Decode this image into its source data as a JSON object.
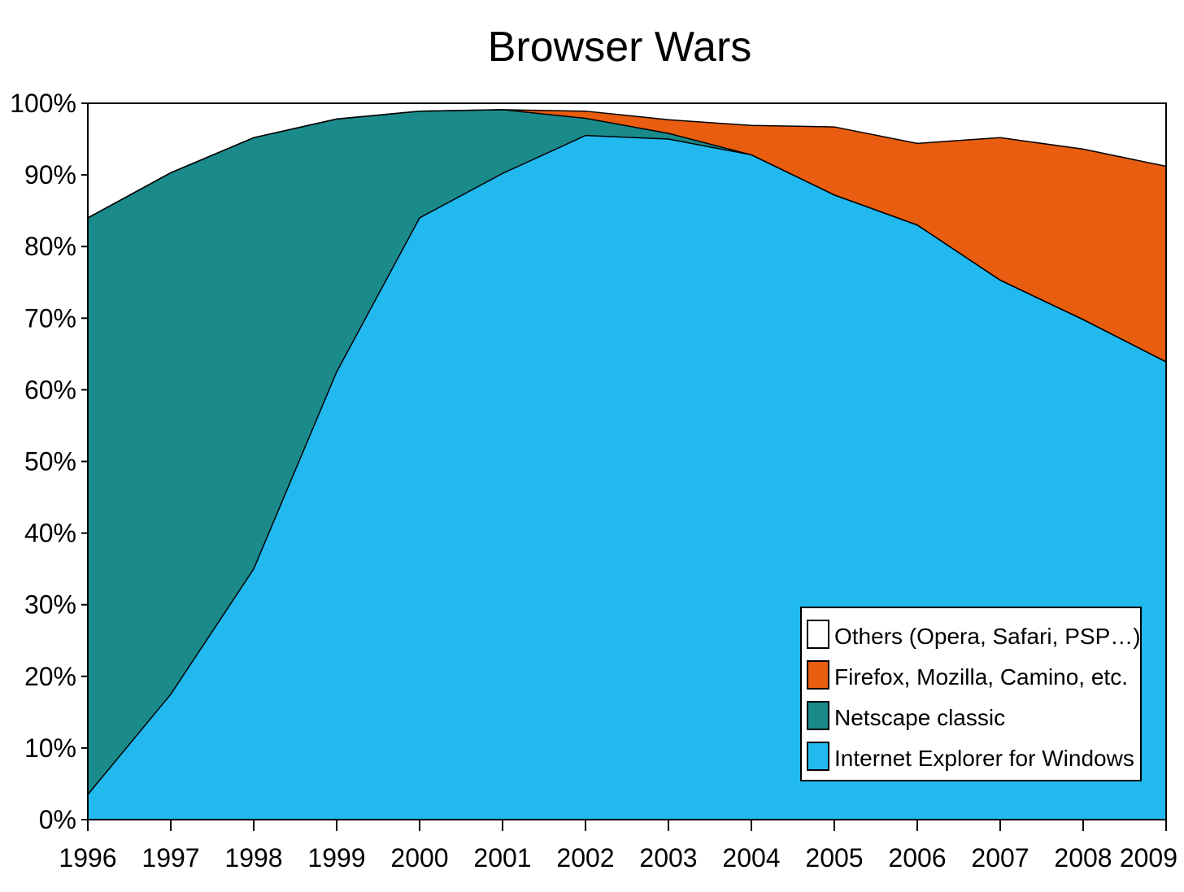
{
  "chart_data": {
    "type": "area",
    "stacked": true,
    "title": "Browser Wars",
    "xlabel": "",
    "ylabel": "",
    "x": [
      1996,
      1997,
      1998,
      1999,
      2000,
      2001,
      2002,
      2003,
      2004,
      2005,
      2006,
      2007,
      2008,
      2009
    ],
    "ylim": [
      0,
      100
    ],
    "yticks": [
      0,
      10,
      20,
      30,
      40,
      50,
      60,
      70,
      80,
      90,
      100
    ],
    "ytick_labels": [
      "0%",
      "10%",
      "20%",
      "30%",
      "40%",
      "50%",
      "60%",
      "70%",
      "80%",
      "90%",
      "100%"
    ],
    "xtick_labels": [
      "1996",
      "1997",
      "1998",
      "1999",
      "2000",
      "2001",
      "2002",
      "2003",
      "2004",
      "2005",
      "2006",
      "2007",
      "2008",
      "2009"
    ],
    "grid": false,
    "legend_position": "bottom-right",
    "series": [
      {
        "name": "Internet Explorer for Windows",
        "color": "#21B9EE",
        "values": [
          3.5,
          17.5,
          35.0,
          62.5,
          84.0,
          90.2,
          95.5,
          95.0,
          92.8,
          87.2,
          83.0,
          75.3,
          69.8,
          63.9
        ]
      },
      {
        "name": "Netscape classic",
        "color": "#1A8A8A",
        "values": [
          80.5,
          72.8,
          60.2,
          35.3,
          14.9,
          8.9,
          2.4,
          0.8,
          0.0,
          0.0,
          0.0,
          0.0,
          0.0,
          0.0
        ]
      },
      {
        "name": "Firefox, Mozilla, Camino, etc.",
        "color": "#E85D0F",
        "values": [
          0.0,
          0.0,
          0.0,
          0.0,
          0.0,
          0.0,
          1.0,
          1.9,
          4.1,
          9.5,
          11.4,
          19.9,
          23.8,
          27.3
        ]
      },
      {
        "name": "Others (Opera, Safari, PSP…)",
        "color": "#FFFFFF",
        "values": [
          16.0,
          9.7,
          4.8,
          2.2,
          1.1,
          0.9,
          1.1,
          2.3,
          3.1,
          3.3,
          5.6,
          4.8,
          6.4,
          8.8
        ]
      }
    ],
    "legend_order": [
      "Others (Opera, Safari, PSP…)",
      "Firefox, Mozilla, Camino, etc.",
      "Netscape classic",
      "Internet Explorer for Windows"
    ]
  }
}
